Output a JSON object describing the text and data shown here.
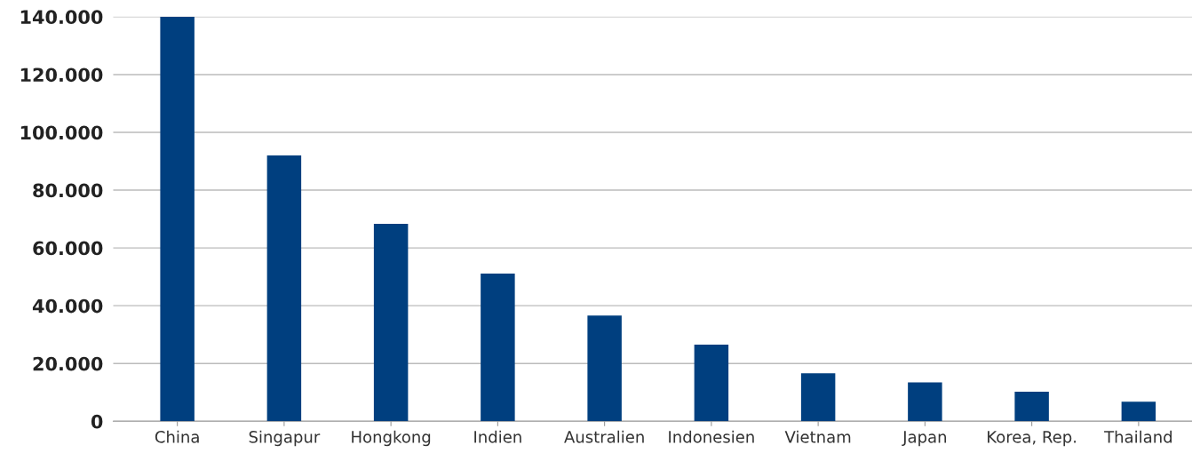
{
  "chart_data": {
    "type": "bar",
    "categories": [
      "China",
      "Singapur",
      "Hongkong",
      "Indien",
      "Australien",
      "Indonesien",
      "Vietnam",
      "Japan",
      "Korea, Rep.",
      "Thailand"
    ],
    "values": [
      140000,
      92000,
      68300,
      51100,
      36600,
      26500,
      16600,
      13500,
      10200,
      6800
    ],
    "color": "#003f7f",
    "ylim": [
      0,
      140000
    ],
    "yticks": [
      {
        "value": 0,
        "label": "0"
      },
      {
        "value": 20000,
        "label": "20.000"
      },
      {
        "value": 40000,
        "label": "40.000"
      },
      {
        "value": 60000,
        "label": "60.000"
      },
      {
        "value": 80000,
        "label": "80.000"
      },
      {
        "value": 100000,
        "label": "100.000"
      },
      {
        "value": 120000,
        "label": "120.000"
      },
      {
        "value": 140000,
        "label": "140.000"
      }
    ],
    "grid": "y"
  }
}
